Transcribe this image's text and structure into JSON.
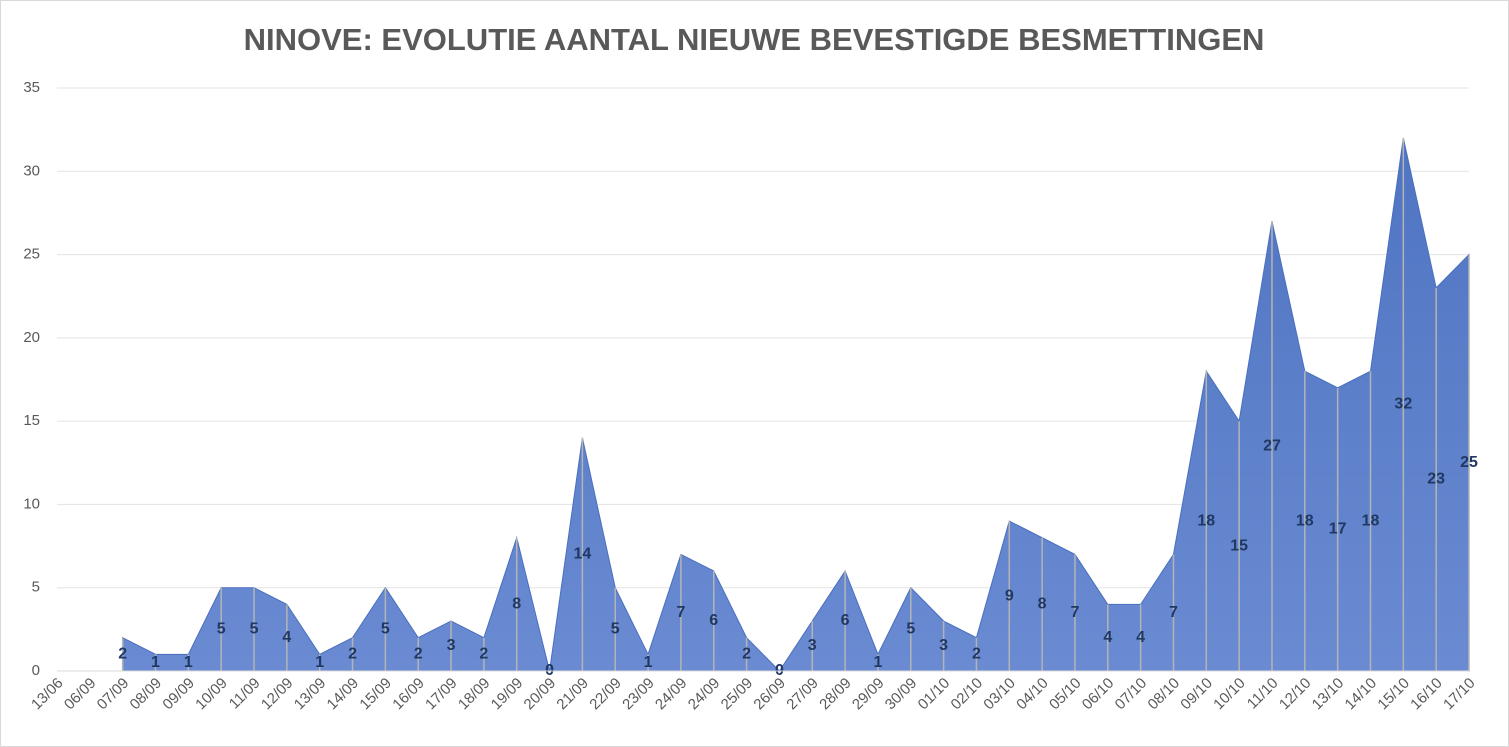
{
  "chart_data": {
    "type": "area",
    "title": "NINOVE: EVOLUTIE AANTAL NIEUWE BEVESTIGDE BESMETTINGEN",
    "categories": [
      "13/06",
      "06/09",
      "07/09",
      "08/09",
      "09/09",
      "10/09",
      "11/09",
      "12/09",
      "13/09",
      "14/09",
      "15/09",
      "16/09",
      "17/09",
      "18/09",
      "19/09",
      "20/09",
      "21/09",
      "22/09",
      "23/09",
      "24/09",
      "24/09",
      "25/09",
      "26/09",
      "27/09",
      "28/09",
      "29/09",
      "30/09",
      "01/10",
      "02/10",
      "03/10",
      "04/10",
      "05/10",
      "06/10",
      "07/10",
      "08/10",
      "09/10",
      "10/10",
      "11/10",
      "12/10",
      "13/10",
      "14/10",
      "15/10",
      "16/10",
      "17/10"
    ],
    "values": [
      null,
      null,
      2,
      1,
      1,
      5,
      5,
      4,
      1,
      2,
      5,
      2,
      3,
      2,
      8,
      0,
      14,
      5,
      1,
      7,
      6,
      2,
      0,
      3,
      6,
      1,
      5,
      3,
      2,
      9,
      8,
      7,
      4,
      4,
      7,
      18,
      15,
      27,
      18,
      17,
      18,
      32,
      23,
      25
    ],
    "color": "#5b7fc9",
    "ylim": [
      0,
      35
    ],
    "yticks": [
      0,
      5,
      10,
      15,
      20,
      25,
      30,
      35
    ],
    "grid": true
  }
}
